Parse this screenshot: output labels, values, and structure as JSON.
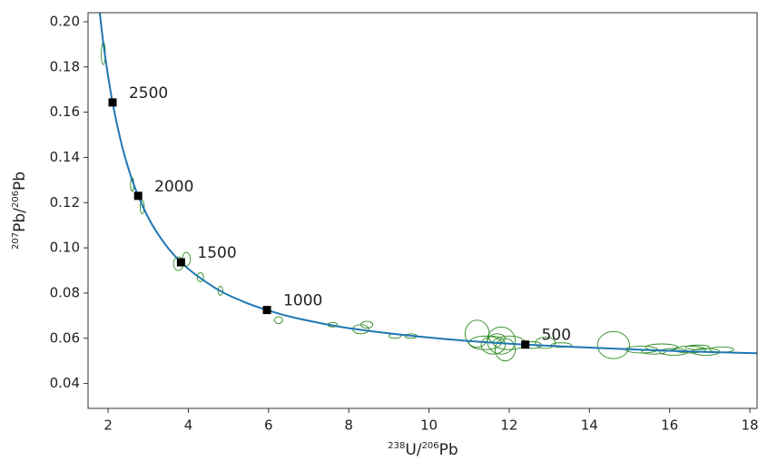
{
  "chart_data": {
    "type": "concordia",
    "x_label": [
      "238",
      "U/",
      "206",
      "Pb"
    ],
    "y_label": [
      "207",
      "Pb/",
      "206",
      "Pb"
    ],
    "xlim": [
      1.5,
      18.18
    ],
    "ylim": [
      0.029,
      0.204
    ],
    "xticks": [
      2,
      4,
      6,
      8,
      10,
      12,
      14,
      16,
      18
    ],
    "yticks": [
      0.04,
      0.06,
      0.08,
      {
        "value": 0.1,
        "label": "0.10"
      },
      0.12,
      0.14,
      0.16,
      0.18,
      {
        "value": 0.2,
        "label": "0.20"
      }
    ],
    "curve": {
      "color": "#1f77b4",
      "x": [
        1.76,
        1.838,
        1.922,
        2.111,
        2.394,
        2.749,
        3.206,
        3.817,
        4.673,
        5.373,
        5.96,
        6.674,
        8.104,
        10.252,
        12.4,
        15.62,
        17.92,
        18.46
      ],
      "y": [
        0.2092,
        0.1968,
        0.1852,
        0.1643,
        0.1419,
        0.123,
        0.1071,
        0.0936,
        0.0822,
        0.0762,
        0.0725,
        0.069,
        0.0642,
        0.0599,
        0.0572,
        0.0547,
        0.0535,
        0.0533
      ]
    },
    "age_markers": {
      "color": "#000000",
      "ages": [
        2500,
        2000,
        1500,
        1000,
        500
      ],
      "x": [
        2.111,
        2.749,
        3.817,
        5.96,
        12.4
      ],
      "y": [
        0.1643,
        0.123,
        0.0936,
        0.0725,
        0.0572
      ]
    },
    "ellipses": {
      "color": "#2e8b22",
      "x": [
        1.88,
        2.6,
        2.85,
        3.75,
        3.95,
        4.3,
        4.8,
        6.25,
        7.6,
        8.3,
        8.45,
        9.15,
        9.55,
        11.2,
        11.4,
        11.6,
        11.8,
        11.9,
        12.0,
        11.7,
        12.6,
        12.9,
        13.3,
        14.6,
        15.3,
        15.8,
        16.1,
        16.5,
        16.9,
        17.3,
        15.6,
        16.7
      ],
      "y": [
        0.186,
        0.128,
        0.118,
        0.093,
        0.095,
        0.087,
        0.081,
        0.068,
        0.066,
        0.064,
        0.066,
        0.061,
        0.061,
        0.062,
        0.058,
        0.057,
        0.059,
        0.055,
        0.058,
        0.06,
        0.057,
        0.058,
        0.057,
        0.057,
        0.055,
        0.056,
        0.054,
        0.055,
        0.054,
        0.055,
        0.054,
        0.056
      ],
      "sx": [
        0.05,
        0.04,
        0.05,
        0.12,
        0.1,
        0.08,
        0.06,
        0.1,
        0.12,
        0.2,
        0.15,
        0.15,
        0.15,
        0.3,
        0.4,
        0.3,
        0.35,
        0.25,
        0.4,
        0.2,
        0.2,
        0.25,
        0.25,
        0.4,
        0.4,
        0.4,
        0.35,
        0.4,
        0.35,
        0.3,
        0.3,
        0.3
      ],
      "sy": [
        0.005,
        0.003,
        0.003,
        0.003,
        0.003,
        0.002,
        0.002,
        0.0015,
        0.001,
        0.002,
        0.0015,
        0.001,
        0.001,
        0.006,
        0.003,
        0.004,
        0.006,
        0.005,
        0.003,
        0.002,
        0.0015,
        0.0025,
        0.001,
        0.006,
        0.0015,
        0.0015,
        0.0015,
        0.0015,
        0.0015,
        0.0012,
        0.001,
        0.001
      ]
    }
  }
}
